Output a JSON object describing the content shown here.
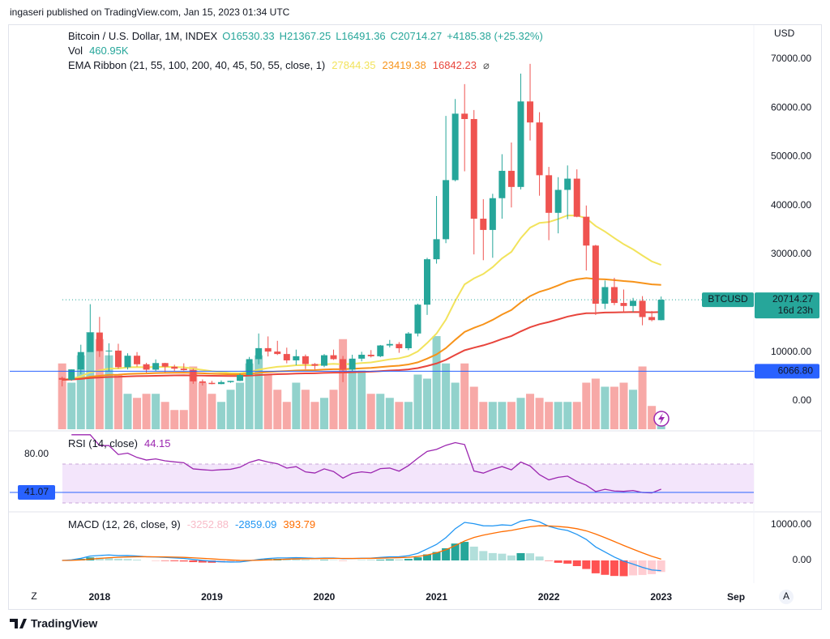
{
  "header": {
    "published": "ingaseri published on TradingView.com, Jan 15, 2023 01:34 UTC",
    "brand": "TradingView"
  },
  "chart_data": {
    "type": "candlestick",
    "title": "Bitcoin / U.S. Dollar, 1M, INDEX",
    "ohlc_legend": [
      "O16530.33",
      "H21367.25",
      "L16491.36",
      "C20714.27",
      "+4185.38 (+25.32%)"
    ],
    "volume_legend": {
      "name": "Vol",
      "value": "460.95K"
    },
    "ema_legend": {
      "name": "EMA Ribbon (21, 55, 100, 200, 40, 45, 50, 55, close, 1)",
      "values": [
        27844.35,
        23419.38,
        16842.23
      ],
      "colors": [
        "#f2e35c",
        "#f7931a",
        "#e8453c"
      ]
    },
    "currency": "USD",
    "up_color": "#26a69a",
    "down_color": "#ef5350",
    "open": [
      4700,
      4340,
      6450,
      10000,
      14000,
      10200,
      10300,
      6900,
      9250,
      7500,
      6400,
      7750,
      7000,
      6600,
      6300,
      4000,
      3700,
      3450,
      3850,
      4100,
      5300,
      8550,
      10800,
      10100,
      9600,
      8300,
      9150,
      7550,
      7200,
      9350,
      8550,
      6400,
      8650,
      9450,
      9140,
      11350,
      11650,
      10780,
      13800,
      19700,
      29000,
      33100,
      45200,
      58800,
      57700,
      37300,
      35000,
      41500,
      47100,
      43800,
      61300,
      57000,
      46200,
      38500,
      43200,
      45500,
      37700,
      31800,
      19900,
      23300,
      20050,
      19430,
      20500,
      17170,
      16530.33
    ],
    "high": [
      4980,
      6470,
      11500,
      19800,
      17200,
      11800,
      11700,
      9750,
      10000,
      7800,
      8500,
      7800,
      7400,
      7700,
      6600,
      4400,
      4100,
      4200,
      4100,
      5600,
      9000,
      13800,
      13200,
      12300,
      10900,
      10500,
      9500,
      7750,
      9600,
      10500,
      9200,
      9450,
      10050,
      10400,
      11450,
      12480,
      12050,
      14100,
      19900,
      29300,
      41950,
      58350,
      61800,
      64850,
      59550,
      41300,
      42400,
      50500,
      52900,
      67000,
      69000,
      59100,
      47900,
      45800,
      48200,
      47400,
      40000,
      31950,
      24650,
      25200,
      22800,
      21100,
      21450,
      18400,
      21367.25
    ],
    "low": [
      2970,
      4110,
      5500,
      10400,
      9000,
      6000,
      6600,
      6450,
      7000,
      5800,
      6100,
      5900,
      6100,
      6200,
      3500,
      3150,
      3400,
      3400,
      3700,
      4050,
      5300,
      7500,
      9100,
      9400,
      7700,
      7300,
      6500,
      6450,
      6900,
      8400,
      3850,
      6150,
      8100,
      8900,
      8950,
      10950,
      9850,
      10400,
      13200,
      17600,
      28100,
      32300,
      44950,
      47000,
      30000,
      28800,
      29300,
      37300,
      39600,
      43300,
      53300,
      42000,
      32900,
      34300,
      37200,
      37600,
      26700,
      17600,
      18800,
      19600,
      18150,
      18200,
      15480,
      16300,
      16491.36
    ],
    "close": [
      4340,
      6450,
      10000,
      14000,
      10200,
      10300,
      6900,
      9250,
      7500,
      6400,
      7750,
      7000,
      6600,
      6300,
      4000,
      3700,
      3450,
      3850,
      4100,
      5300,
      8550,
      10800,
      10100,
      9600,
      8300,
      9150,
      7550,
      7200,
      9350,
      8550,
      6400,
      8650,
      9450,
      9140,
      11350,
      11650,
      10780,
      13800,
      19700,
      29000,
      33100,
      45200,
      58800,
      57700,
      37300,
      35000,
      41500,
      47100,
      43800,
      61300,
      57000,
      46200,
      38500,
      43200,
      45500,
      37700,
      31800,
      19900,
      23300,
      20050,
      19430,
      20500,
      17170,
      16540,
      20714.27
    ],
    "volume": [
      6500,
      4600,
      7300,
      9600,
      8900,
      7300,
      5400,
      3500,
      3100,
      3500,
      3500,
      2700,
      1900,
      1900,
      6200,
      4600,
      3500,
      2700,
      3900,
      4600,
      6500,
      7300,
      5400,
      3900,
      2700,
      4600,
      3900,
      2700,
      3100,
      3900,
      8900,
      5800,
      5800,
      3500,
      3500,
      3100,
      2700,
      2700,
      5400,
      5000,
      9200,
      6500,
      4600,
      6500,
      4200,
      2700,
      2700,
      2700,
      2700,
      3100,
      3500,
      3100,
      2700,
      2700,
      2700,
      2700,
      4600,
      5000,
      4200,
      4200,
      4600,
      3900,
      6200,
      2300,
      460.95
    ],
    "xlim": [
      -5.6,
      73.9
    ],
    "xticks": [
      {
        "value": 4,
        "label": "2018"
      },
      {
        "value": 16,
        "label": "2019"
      },
      {
        "value": 28,
        "label": "2020"
      },
      {
        "value": 40,
        "label": "2021"
      },
      {
        "value": 52,
        "label": "2022"
      },
      {
        "value": 64,
        "label": "2023"
      },
      {
        "value": 72,
        "label": "Sep"
      }
    ],
    "ylim": [
      -5800,
      76100
    ],
    "yticks": [
      {
        "value": 0,
        "label": "0.00"
      },
      {
        "value": 10000,
        "label": "10000.00"
      },
      {
        "value": 20000,
        "label": "20000.00"
      },
      {
        "value": 30000,
        "label": "30000.00"
      },
      {
        "value": 40000,
        "label": "40000.00"
      },
      {
        "value": 50000,
        "label": "50000.00"
      },
      {
        "value": 60000,
        "label": "60000.00"
      },
      {
        "value": 70000,
        "label": "70000.00"
      }
    ],
    "price_line": {
      "symbol": "BTCUSD",
      "value": 20714.27,
      "countdown": "16d 23h"
    },
    "horizontal_line": {
      "value": 6066.8,
      "label": "6066.80"
    },
    "rsi": {
      "title": "RSI (14, close)",
      "value": 44.15,
      "color": "#9c27b0",
      "ylim": [
        22.8,
        101.5
      ],
      "yticks": [
        {
          "value": 80,
          "label": "80.00"
        }
      ],
      "line": 41.07
    },
    "macd": {
      "title": "MACD (12, 26, close, 9)",
      "values": [
        -3252.88,
        -2859.09,
        393.79
      ],
      "colors": [
        "#f8bbc8",
        "#2196f3",
        "#ff6d00"
      ],
      "ylim": [
        -6360,
        13400
      ],
      "yticks": [
        {
          "value": 0,
          "label": "0.00"
        },
        {
          "value": 10000,
          "label": "10000.00"
        }
      ]
    }
  }
}
